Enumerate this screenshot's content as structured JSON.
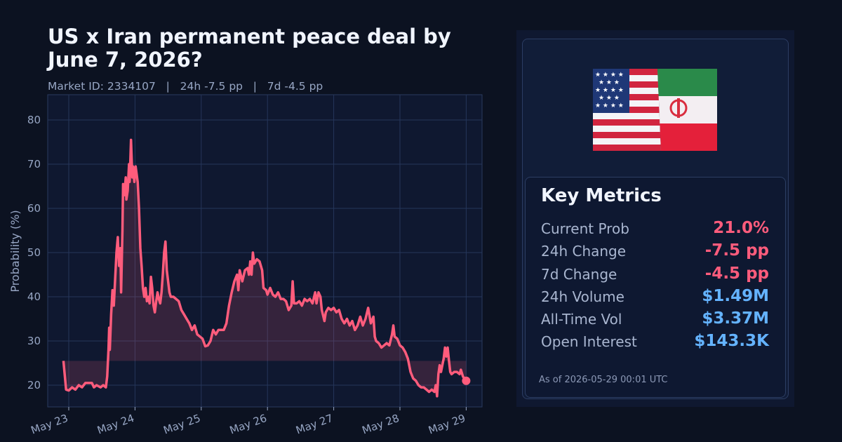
{
  "title": "US x Iran permanent peace deal by June 7, 2026?",
  "subtitle": "Market ID: 2334107   |   24h -7.5 pp   |   7d -4.5 pp",
  "colors": {
    "line": "#ff5c7c",
    "positive": "#64b3ff",
    "negative": "#ff5c7c",
    "plot_bg": "#0f1830",
    "grid": "#25365a"
  },
  "chart_data": {
    "type": "line",
    "ylabel": "Probability (%)",
    "xlabel": "",
    "ylim": [
      15,
      86
    ],
    "yticks": [
      20,
      30,
      40,
      50,
      60,
      70,
      80
    ],
    "xticks": [
      "May 23",
      "May 24",
      "May 25",
      "May 26",
      "May 27",
      "May 28",
      "May 29"
    ],
    "baseline": 25.5,
    "grid": true,
    "fill_between_baseline": true,
    "series": [
      {
        "x_unit": "days since May 23 00:00",
        "points": [
          [
            -0.08,
            25.5
          ],
          [
            -0.04,
            19.0
          ],
          [
            0.0,
            18.8
          ],
          [
            0.05,
            19.5
          ],
          [
            0.1,
            19.0
          ],
          [
            0.15,
            20.0
          ],
          [
            0.2,
            19.5
          ],
          [
            0.25,
            20.5
          ],
          [
            0.3,
            20.5
          ],
          [
            0.35,
            20.5
          ],
          [
            0.38,
            19.5
          ],
          [
            0.42,
            20.0
          ],
          [
            0.48,
            19.5
          ],
          [
            0.52,
            20.0
          ],
          [
            0.56,
            19.5
          ],
          [
            0.58,
            22.0
          ],
          [
            0.6,
            28.0
          ],
          [
            0.61,
            33.0
          ],
          [
            0.62,
            28.0
          ],
          [
            0.64,
            36.0
          ],
          [
            0.66,
            41.5
          ],
          [
            0.68,
            38.0
          ],
          [
            0.7,
            44.0
          ],
          [
            0.72,
            50.0
          ],
          [
            0.74,
            53.5
          ],
          [
            0.76,
            47.0
          ],
          [
            0.78,
            51.0
          ],
          [
            0.79,
            41.0
          ],
          [
            0.81,
            55.0
          ],
          [
            0.82,
            65.5
          ],
          [
            0.84,
            63.0
          ],
          [
            0.86,
            67.0
          ],
          [
            0.87,
            62.0
          ],
          [
            0.89,
            64.0
          ],
          [
            0.91,
            70.0
          ],
          [
            0.92,
            66.0
          ],
          [
            0.94,
            75.5
          ],
          [
            0.96,
            67.0
          ],
          [
            0.97,
            69.5
          ],
          [
            0.99,
            66.0
          ],
          [
            1.01,
            69.5
          ],
          [
            1.04,
            66.0
          ],
          [
            1.06,
            60.0
          ],
          [
            1.08,
            51.0
          ],
          [
            1.1,
            47.0
          ],
          [
            1.12,
            42.0
          ],
          [
            1.14,
            40.0
          ],
          [
            1.16,
            42.0
          ],
          [
            1.18,
            39.0
          ],
          [
            1.2,
            40.0
          ],
          [
            1.22,
            38.5
          ],
          [
            1.24,
            44.5
          ],
          [
            1.26,
            42.0
          ],
          [
            1.28,
            38.0
          ],
          [
            1.3,
            36.5
          ],
          [
            1.32,
            39.0
          ],
          [
            1.34,
            41.0
          ],
          [
            1.36,
            39.5
          ],
          [
            1.38,
            38.5
          ],
          [
            1.4,
            41.0
          ],
          [
            1.42,
            45.0
          ],
          [
            1.44,
            50.0
          ],
          [
            1.46,
            52.5
          ],
          [
            1.48,
            46.0
          ],
          [
            1.5,
            43.5
          ],
          [
            1.52,
            41.0
          ],
          [
            1.54,
            40.0
          ],
          [
            1.58,
            40.0
          ],
          [
            1.62,
            39.5
          ],
          [
            1.66,
            39.0
          ],
          [
            1.7,
            37.0
          ],
          [
            1.74,
            36.0
          ],
          [
            1.78,
            35.0
          ],
          [
            1.82,
            34.0
          ],
          [
            1.86,
            32.5
          ],
          [
            1.9,
            33.5
          ],
          [
            1.94,
            31.5
          ],
          [
            1.98,
            31.0
          ],
          [
            2.02,
            30.5
          ],
          [
            2.06,
            28.8
          ],
          [
            2.1,
            29.0
          ],
          [
            2.14,
            30.0
          ],
          [
            2.18,
            32.5
          ],
          [
            2.22,
            31.5
          ],
          [
            2.26,
            32.5
          ],
          [
            2.3,
            32.5
          ],
          [
            2.34,
            32.5
          ],
          [
            2.38,
            34.0
          ],
          [
            2.42,
            38.0
          ],
          [
            2.46,
            41.0
          ],
          [
            2.5,
            43.5
          ],
          [
            2.54,
            45.0
          ],
          [
            2.56,
            41.5
          ],
          [
            2.58,
            46.0
          ],
          [
            2.62,
            43.5
          ],
          [
            2.66,
            46.0
          ],
          [
            2.7,
            46.5
          ],
          [
            2.72,
            45.0
          ],
          [
            2.74,
            48.0
          ],
          [
            2.76,
            45.0
          ],
          [
            2.78,
            50.0
          ],
          [
            2.8,
            47.5
          ],
          [
            2.84,
            48.5
          ],
          [
            2.88,
            48.0
          ],
          [
            2.92,
            46.0
          ],
          [
            2.94,
            42.0
          ],
          [
            2.98,
            41.5
          ],
          [
            3.0,
            40.5
          ],
          [
            3.04,
            42.0
          ],
          [
            3.08,
            40.5
          ],
          [
            3.12,
            40.0
          ],
          [
            3.16,
            41.0
          ],
          [
            3.2,
            39.5
          ],
          [
            3.24,
            39.5
          ],
          [
            3.28,
            39.0
          ],
          [
            3.32,
            37.0
          ],
          [
            3.36,
            38.0
          ],
          [
            3.38,
            43.5
          ],
          [
            3.4,
            38.5
          ],
          [
            3.44,
            38.5
          ],
          [
            3.48,
            39.0
          ],
          [
            3.52,
            38.0
          ],
          [
            3.56,
            39.5
          ],
          [
            3.6,
            39.0
          ],
          [
            3.64,
            39.5
          ],
          [
            3.68,
            38.5
          ],
          [
            3.72,
            41.0
          ],
          [
            3.74,
            38.5
          ],
          [
            3.77,
            41.0
          ],
          [
            3.8,
            40.0
          ],
          [
            3.82,
            37.0
          ],
          [
            3.86,
            34.5
          ],
          [
            3.88,
            36.5
          ],
          [
            3.92,
            37.5
          ],
          [
            3.96,
            37.0
          ],
          [
            4.0,
            37.5
          ],
          [
            4.04,
            36.5
          ],
          [
            4.08,
            37.0
          ],
          [
            4.12,
            35.0
          ],
          [
            4.16,
            34.0
          ],
          [
            4.2,
            35.0
          ],
          [
            4.24,
            33.5
          ],
          [
            4.28,
            34.5
          ],
          [
            4.32,
            32.5
          ],
          [
            4.36,
            33.5
          ],
          [
            4.4,
            35.5
          ],
          [
            4.44,
            33.5
          ],
          [
            4.48,
            35.0
          ],
          [
            4.52,
            37.5
          ],
          [
            4.56,
            34.0
          ],
          [
            4.6,
            35.5
          ],
          [
            4.62,
            31.0
          ],
          [
            4.64,
            30.0
          ],
          [
            4.68,
            29.5
          ],
          [
            4.72,
            28.5
          ],
          [
            4.76,
            29.0
          ],
          [
            4.8,
            29.5
          ],
          [
            4.84,
            29.0
          ],
          [
            4.88,
            31.5
          ],
          [
            4.9,
            33.5
          ],
          [
            4.92,
            31.0
          ],
          [
            4.96,
            30.5
          ],
          [
            5.0,
            29.0
          ],
          [
            5.04,
            28.5
          ],
          [
            5.08,
            27.5
          ],
          [
            5.12,
            26.0
          ],
          [
            5.16,
            23.0
          ],
          [
            5.2,
            21.5
          ],
          [
            5.24,
            21.0
          ],
          [
            5.28,
            20.0
          ],
          [
            5.32,
            19.5
          ],
          [
            5.36,
            19.5
          ],
          [
            5.4,
            19.0
          ],
          [
            5.44,
            18.5
          ],
          [
            5.48,
            19.0
          ],
          [
            5.52,
            18.5
          ],
          [
            5.54,
            20.0
          ],
          [
            5.56,
            17.5
          ],
          [
            5.58,
            22.5
          ],
          [
            5.6,
            24.5
          ],
          [
            5.62,
            23.0
          ],
          [
            5.64,
            24.5
          ],
          [
            5.66,
            26.0
          ],
          [
            5.68,
            28.5
          ],
          [
            5.7,
            26.5
          ],
          [
            5.72,
            28.5
          ],
          [
            5.74,
            25.5
          ],
          [
            5.76,
            23.0
          ],
          [
            5.78,
            22.5
          ],
          [
            5.82,
            23.0
          ],
          [
            5.86,
            23.0
          ],
          [
            5.9,
            22.5
          ],
          [
            5.92,
            23.5
          ],
          [
            5.95,
            22.0
          ],
          [
            5.97,
            21.5
          ],
          [
            6.0,
            21.0
          ]
        ]
      }
    ]
  },
  "card": {
    "flag_icon": "us-iran-flags-icon",
    "title": "Key Metrics",
    "metrics": [
      {
        "label": "Current Prob",
        "value": "21.0%",
        "tone": "neg"
      },
      {
        "label": "24h Change",
        "value": "-7.5 pp",
        "tone": "neg"
      },
      {
        "label": "7d Change",
        "value": "-4.5 pp",
        "tone": "neg"
      },
      {
        "label": "24h Volume",
        "value": "$1.49M",
        "tone": "pos"
      },
      {
        "label": "All-Time Vol",
        "value": "$3.37M",
        "tone": "pos"
      },
      {
        "label": "Open Interest",
        "value": "$143.3K",
        "tone": "pos"
      }
    ],
    "as_of": "As of 2026-05-29 00:01 UTC"
  }
}
